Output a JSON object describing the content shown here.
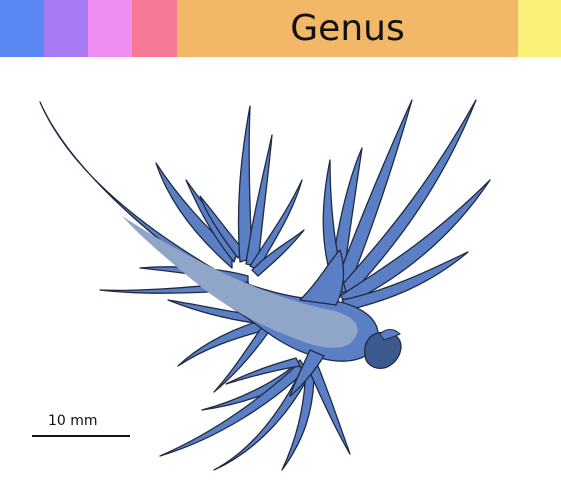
{
  "header": {
    "title": "Genus",
    "colors": [
      "#5b87f5",
      "#a57af2",
      "#ef8ef0",
      "#f67a96",
      "#f2b767",
      "#f9f07a"
    ]
  },
  "figure": {
    "subject": "sea-slug-silhouette-icon",
    "body_color": "#5a7fc4",
    "highlight_color": "#8fa6c9",
    "outline_color": "#1f2a44"
  },
  "scale_bar": {
    "label": "10 mm"
  }
}
